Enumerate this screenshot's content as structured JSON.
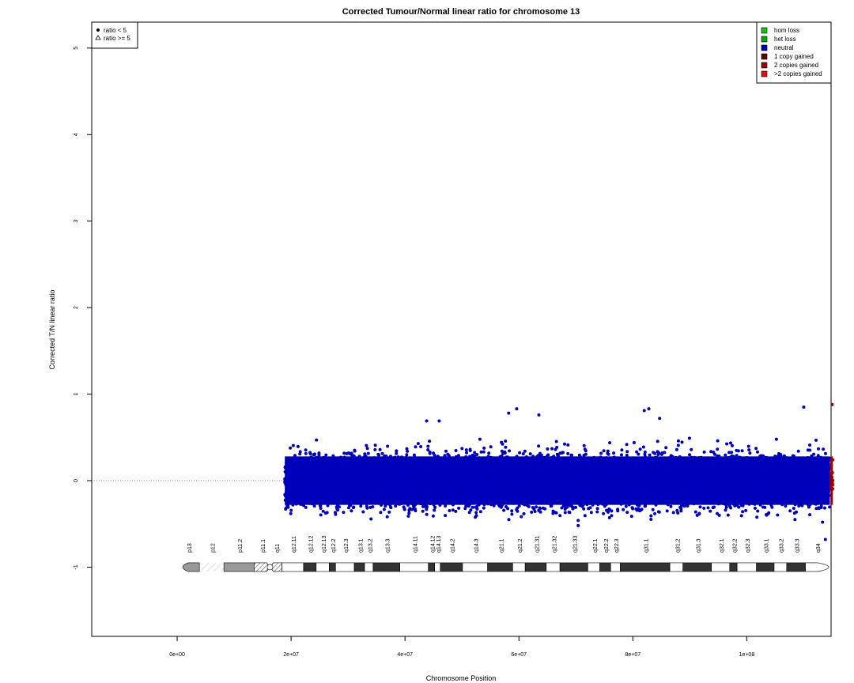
{
  "chart_data": {
    "type": "scatter",
    "title": "Corrected Tumour/Normal linear ratio for chromosome  13",
    "xlabel": "Chromosome Position",
    "ylabel": "Corrected T/N linear ratio",
    "xlim": [
      -15000000,
      114800000
    ],
    "ylim": [
      -1.8,
      5.3
    ],
    "x_ticks": [
      0,
      20000000,
      40000000,
      60000000,
      80000000,
      100000000
    ],
    "x_tick_labels": [
      "0e+00",
      "2e+07",
      "4e+07",
      "6e+07",
      "8e+07",
      "1e+08"
    ],
    "y_ticks": [
      -1,
      0,
      1,
      2,
      3,
      4,
      5
    ],
    "y_tick_labels": [
      "-1",
      "0",
      "1",
      "2",
      "3",
      "4",
      "5"
    ],
    "reference_line_y": 0,
    "legend_shape": {
      "position": "top-left",
      "entries": [
        {
          "symbol": "filled-circle",
          "label": "ratio < 5"
        },
        {
          "symbol": "open-triangle",
          "label": "ratio >= 5"
        }
      ]
    },
    "legend_state": {
      "position": "top-right",
      "entries": [
        {
          "label": "hom loss",
          "color": "#00cc00"
        },
        {
          "label": "het loss",
          "color": "#00aa00"
        },
        {
          "label": "neutral",
          "color": "#0000bb"
        },
        {
          "label": "1 copy gained",
          "color": "#660000"
        },
        {
          "label": "2 copies gained",
          "color": "#990000"
        },
        {
          "label": ">2 copies gained",
          "color": "#dd1111"
        }
      ]
    },
    "series": [
      {
        "name": "neutral",
        "color": "#0000bb",
        "x_range": [
          18900000,
          114600000
        ],
        "y_spread": [
          -0.45,
          0.5
        ]
      },
      {
        "name": "1 copy gained",
        "color": "#990000",
        "x_range": [
          114700000,
          115100000
        ],
        "y_spread": [
          -0.1,
          0.75
        ]
      }
    ],
    "outliers": [
      {
        "x": 43800000,
        "y": 0.69
      },
      {
        "x": 46000000,
        "y": 0.69
      },
      {
        "x": 58200000,
        "y": 0.78
      },
      {
        "x": 59600000,
        "y": 0.83
      },
      {
        "x": 63500000,
        "y": 0.76
      },
      {
        "x": 82000000,
        "y": 0.81
      },
      {
        "x": 82800000,
        "y": 0.83
      },
      {
        "x": 84700000,
        "y": 0.72
      },
      {
        "x": 110000000,
        "y": 0.85
      },
      {
        "x": 115000000,
        "y": 0.88
      },
      {
        "x": 70400000,
        "y": -0.52
      },
      {
        "x": 70400000,
        "y": -0.46
      },
      {
        "x": 113800000,
        "y": -0.68
      },
      {
        "x": 113300000,
        "y": -0.48
      }
    ],
    "ideogram": {
      "y": -1,
      "bands": [
        {
          "name": "p13",
          "start": 0,
          "end": 3900000,
          "stain": "gvar"
        },
        {
          "name": "p12",
          "start": 3900000,
          "end": 8200000,
          "stain": "stalk"
        },
        {
          "name": "p11.2",
          "start": 8200000,
          "end": 13500000,
          "stain": "gvar"
        },
        {
          "name": "p11.1",
          "start": 13500000,
          "end": 16300000,
          "stain": "acen"
        },
        {
          "name": "q11",
          "start": 16300000,
          "end": 18400000,
          "stain": "acen"
        },
        {
          "name": "q12.11",
          "start": 18400000,
          "end": 22200000,
          "stain": "gneg"
        },
        {
          "name": "q12.12",
          "start": 22200000,
          "end": 24400000,
          "stain": "gpos"
        },
        {
          "name": "q12.13",
          "start": 24400000,
          "end": 26700000,
          "stain": "gneg"
        },
        {
          "name": "q12.2",
          "start": 26700000,
          "end": 27800000,
          "stain": "gpos"
        },
        {
          "name": "q12.3",
          "start": 27800000,
          "end": 31100000,
          "stain": "gneg"
        },
        {
          "name": "q13.1",
          "start": 31100000,
          "end": 32900000,
          "stain": "gpos"
        },
        {
          "name": "q13.2",
          "start": 32900000,
          "end": 34400000,
          "stain": "gneg"
        },
        {
          "name": "q13.3",
          "start": 34400000,
          "end": 39100000,
          "stain": "gpos"
        },
        {
          "name": "q14.11",
          "start": 39100000,
          "end": 44100000,
          "stain": "gneg"
        },
        {
          "name": "q14.12",
          "start": 44100000,
          "end": 45200000,
          "stain": "gpos"
        },
        {
          "name": "q14.13",
          "start": 45200000,
          "end": 46200000,
          "stain": "gneg"
        },
        {
          "name": "q14.2",
          "start": 46200000,
          "end": 50100000,
          "stain": "gpos"
        },
        {
          "name": "q14.3",
          "start": 50100000,
          "end": 54500000,
          "stain": "gneg"
        },
        {
          "name": "q21.1",
          "start": 54500000,
          "end": 58900000,
          "stain": "gpos"
        },
        {
          "name": "q21.2",
          "start": 58900000,
          "end": 61100000,
          "stain": "gneg"
        },
        {
          "name": "q21.31",
          "start": 61100000,
          "end": 64800000,
          "stain": "gpos"
        },
        {
          "name": "q21.32",
          "start": 64800000,
          "end": 67200000,
          "stain": "gneg"
        },
        {
          "name": "q21.33",
          "start": 67200000,
          "end": 72100000,
          "stain": "gpos"
        },
        {
          "name": "q22.1",
          "start": 72100000,
          "end": 74200000,
          "stain": "gneg"
        },
        {
          "name": "q22.2",
          "start": 74200000,
          "end": 76100000,
          "stain": "gpos"
        },
        {
          "name": "q22.3",
          "start": 76100000,
          "end": 77800000,
          "stain": "gneg"
        },
        {
          "name": "q31.1",
          "start": 77800000,
          "end": 86500000,
          "stain": "gpos"
        },
        {
          "name": "q31.2",
          "start": 86500000,
          "end": 88800000,
          "stain": "gneg"
        },
        {
          "name": "q31.3",
          "start": 88800000,
          "end": 93800000,
          "stain": "gpos"
        },
        {
          "name": "q32.1",
          "start": 93800000,
          "end": 97000000,
          "stain": "gneg"
        },
        {
          "name": "q32.2",
          "start": 97000000,
          "end": 98300000,
          "stain": "gpos"
        },
        {
          "name": "q32.3",
          "start": 98300000,
          "end": 101700000,
          "stain": "gneg"
        },
        {
          "name": "q33.1",
          "start": 101700000,
          "end": 104800000,
          "stain": "gpos"
        },
        {
          "name": "q33.2",
          "start": 104800000,
          "end": 107000000,
          "stain": "gneg"
        },
        {
          "name": "q33.3",
          "start": 107000000,
          "end": 110300000,
          "stain": "gpos"
        },
        {
          "name": "q34",
          "start": 110300000,
          "end": 114400000,
          "stain": "gneg"
        }
      ]
    }
  }
}
